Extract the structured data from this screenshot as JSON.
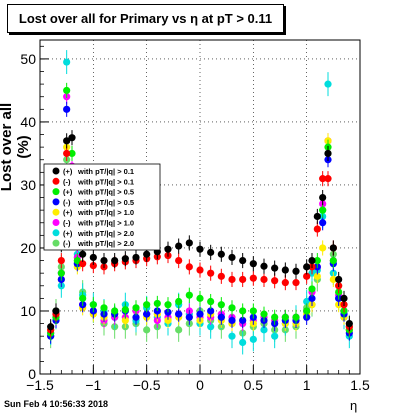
{
  "chart_data": {
    "type": "scatter",
    "title": "Lost over all for Primary vs   η at pT > 0.11",
    "xlabel": "η",
    "ylabel": "Lost over all (%)",
    "xlim": [
      -1.5,
      1.5
    ],
    "ylim": [
      0,
      53
    ],
    "xticks": [
      "−1.5",
      "−1",
      "−0.5",
      "0",
      "0.5",
      "1",
      "1.5"
    ],
    "yticks": [
      "0",
      "10",
      "20",
      "30",
      "40",
      "50"
    ],
    "grid": true,
    "legend_position": "left-middle",
    "footer": "Sun Feb  4 10:56:33 2018",
    "series": [
      {
        "name": "with pT/|q| > 0.1",
        "marker": "(+)",
        "color": "#000000",
        "x": [
          -1.1,
          -1.0,
          -0.9,
          -0.8,
          -0.7,
          -0.6,
          -0.5,
          -0.4,
          -0.3,
          -0.2,
          -0.1,
          0.0,
          0.1,
          0.2,
          0.3,
          0.4,
          0.5,
          0.6,
          0.7,
          0.8,
          0.9,
          1.0
        ],
        "y": [
          19.0,
          18.5,
          18.0,
          18.0,
          18.3,
          18.5,
          19.0,
          19.4,
          19.8,
          20.3,
          20.8,
          19.8,
          19.3,
          19.0,
          18.5,
          18.0,
          17.5,
          17.1,
          16.8,
          16.5,
          16.3,
          17.0
        ]
      },
      {
        "name": "with pT/|q| > 0.1",
        "marker": "(-)",
        "color": "#ff0000",
        "x": [
          -1.1,
          -1.0,
          -0.9,
          -0.8,
          -0.7,
          -0.6,
          -0.5,
          -0.4,
          -0.3,
          -0.2,
          -0.1,
          0.0,
          0.1,
          0.2,
          0.3,
          0.4,
          0.5,
          0.6,
          0.7,
          0.8,
          0.9,
          1.0
        ],
        "y": [
          17.5,
          17.2,
          17.0,
          17.5,
          17.8,
          18.0,
          18.3,
          18.6,
          18.8,
          18.0,
          17.0,
          16.5,
          16.0,
          15.5,
          15.0,
          15.0,
          15.2,
          15.0,
          14.8,
          14.5,
          14.5,
          15.5
        ]
      },
      {
        "name": "with pT/|q| > 0.5",
        "marker": "(+)",
        "color": "#00ee00",
        "x": [
          -1.1,
          -1.0,
          -0.9,
          -0.8,
          -0.7,
          -0.6,
          -0.5,
          -0.4,
          -0.3,
          -0.2,
          -0.1,
          0.0,
          0.1,
          0.2,
          0.3,
          0.4,
          0.5,
          0.6,
          0.7,
          0.8,
          0.9,
          1.0
        ],
        "y": [
          12.0,
          11.0,
          10.5,
          10.0,
          10.2,
          10.5,
          11.0,
          11.2,
          11.0,
          11.5,
          12.5,
          12.0,
          11.5,
          11.0,
          10.5,
          10.0,
          10.0,
          9.5,
          9.0,
          9.0,
          9.0,
          10.0
        ]
      },
      {
        "name": "with pT/|q| > 0.5",
        "marker": "(-)",
        "color": "#0000ff",
        "x": [
          -1.1,
          -1.0,
          -0.9,
          -0.8,
          -0.7,
          -0.6,
          -0.5,
          -0.4,
          -0.3,
          -0.2,
          -0.1,
          0.0,
          0.1,
          0.2,
          0.3,
          0.4,
          0.5,
          0.6,
          0.7,
          0.8,
          0.9,
          1.0
        ],
        "y": [
          11.0,
          10.0,
          9.5,
          9.5,
          10.0,
          9.0,
          9.5,
          10.0,
          9.8,
          9.5,
          9.0,
          9.5,
          10.0,
          9.0,
          8.5,
          8.5,
          9.0,
          8.5,
          8.0,
          8.5,
          8.5,
          9.0
        ]
      },
      {
        "name": "with pT/|q| > 1.0",
        "marker": "(+)",
        "color": "#ffee00",
        "x": [
          -1.1,
          -1.0,
          -0.9,
          -0.8,
          -0.7,
          -0.6,
          -0.5,
          -0.4,
          -0.3,
          -0.2,
          -0.1,
          0.0,
          0.1,
          0.2,
          0.3,
          0.4,
          0.5,
          0.6,
          0.7,
          0.8,
          0.9,
          1.0
        ],
        "y": [
          10.5,
          9.5,
          9.0,
          9.5,
          8.5,
          9.0,
          9.0,
          9.5,
          8.5,
          9.0,
          9.0,
          8.5,
          9.5,
          8.5,
          8.0,
          8.5,
          8.0,
          8.5,
          8.0,
          8.0,
          8.0,
          9.5
        ]
      },
      {
        "name": "with pT/|q| > 1.0",
        "marker": "(-)",
        "color": "#ff00ff",
        "x": [
          -1.1,
          -1.0,
          -0.9,
          -0.8,
          -0.7,
          -0.6,
          -0.5,
          -0.4,
          -0.3,
          -0.2,
          -0.1,
          0.0,
          0.1,
          0.2,
          0.3,
          0.4,
          0.5,
          0.6,
          0.7,
          0.8,
          0.9,
          1.0
        ],
        "y": [
          11.0,
          10.0,
          8.5,
          9.0,
          9.0,
          10.0,
          9.5,
          8.5,
          9.0,
          9.5,
          10.0,
          9.0,
          9.0,
          9.5,
          9.0,
          8.0,
          8.5,
          9.0,
          8.5,
          9.0,
          9.0,
          10.0
        ]
      },
      {
        "name": "with pT/|q| > 2.0",
        "marker": "(+)",
        "color": "#00dddd",
        "x": [
          -1.1,
          -1.0,
          -0.9,
          -0.8,
          -0.7,
          -0.6,
          -0.5,
          -0.4,
          -0.3,
          -0.2,
          -0.1,
          0.0,
          0.1,
          0.2,
          0.3,
          0.4,
          0.5,
          0.6,
          0.7,
          0.8,
          0.9,
          1.0
        ],
        "y": [
          12.5,
          11.0,
          10.0,
          9.0,
          11.0,
          8.5,
          10.5,
          9.0,
          8.0,
          11.0,
          9.5,
          8.0,
          7.5,
          9.0,
          6.0,
          5.0,
          5.5,
          7.0,
          6.0,
          8.0,
          9.0,
          11.5
        ]
      },
      {
        "name": "with pT/|q| > 2.0",
        "marker": "(-)",
        "color": "#66dd66",
        "x": [
          -1.1,
          -1.0,
          -0.9,
          -0.8,
          -0.7,
          -0.6,
          -0.5,
          -0.4,
          -0.3,
          -0.2,
          -0.1,
          0.0,
          0.1,
          0.2,
          0.3,
          0.4,
          0.5,
          0.6,
          0.7,
          0.8,
          0.9,
          1.0
        ],
        "y": [
          13.0,
          10.0,
          8.0,
          7.5,
          7.5,
          8.0,
          7.0,
          7.5,
          8.5,
          7.0,
          8.0,
          10.0,
          8.5,
          7.5,
          8.0,
          6.5,
          7.5,
          8.0,
          7.0,
          7.0,
          7.5,
          10.5
        ]
      }
    ],
    "edge_points": [
      {
        "x": -1.4,
        "values": [
          7.5,
          7.0,
          6.5,
          6.0,
          7.0,
          6.5,
          6.5,
          6.0
        ]
      },
      {
        "x": -1.35,
        "values": [
          10.0,
          9.5,
          9.0,
          8.5,
          9.0,
          9.5,
          9.0,
          10.0
        ]
      },
      {
        "x": -1.3,
        "values": [
          20.5,
          18.0,
          16.0,
          15.0,
          15.0,
          16.0,
          14.0,
          17.0
        ]
      },
      {
        "x": -1.25,
        "values": [
          37.0,
          35.0,
          45.0,
          42.0,
          36.0,
          44.0,
          49.5,
          34.0
        ]
      },
      {
        "x": -1.2,
        "values": [
          37.5,
          32.0,
          35.0,
          30.0,
          28.0,
          33.0,
          27.0,
          22.0
        ]
      },
      {
        "x": -1.15,
        "values": [
          23.0,
          22.0,
          18.0,
          17.5,
          17.0,
          18.5,
          19.0,
          21.0
        ]
      },
      {
        "x": 1.05,
        "values": [
          18.0,
          17.0,
          13.5,
          12.0,
          11.0,
          13.0,
          16.0,
          11.0
        ]
      },
      {
        "x": 1.1,
        "values": [
          25.0,
          23.0,
          18.0,
          17.0,
          15.5,
          17.0,
          16.5,
          15.0
        ]
      },
      {
        "x": 1.15,
        "values": [
          28.0,
          31.0,
          26.0,
          24.0,
          20.0,
          27.0,
          25.0,
          26.0
        ]
      },
      {
        "x": 1.2,
        "values": [
          35.0,
          31.0,
          36.0,
          34.0,
          37.0,
          37.0,
          46.0,
          35.0
        ]
      },
      {
        "x": 1.25,
        "values": [
          20.0,
          20.0,
          18.0,
          17.5,
          15.0,
          18.0,
          16.0,
          19.0
        ]
      },
      {
        "x": 1.3,
        "values": [
          15.0,
          14.0,
          13.0,
          12.0,
          11.0,
          12.5,
          12.0,
          14.0
        ]
      },
      {
        "x": 1.35,
        "values": [
          12.0,
          11.0,
          10.0,
          9.5,
          9.0,
          10.0,
          9.0,
          11.0
        ]
      },
      {
        "x": 1.4,
        "values": [
          8.0,
          7.5,
          7.0,
          6.5,
          7.0,
          7.0,
          6.0,
          7.5
        ]
      }
    ]
  }
}
